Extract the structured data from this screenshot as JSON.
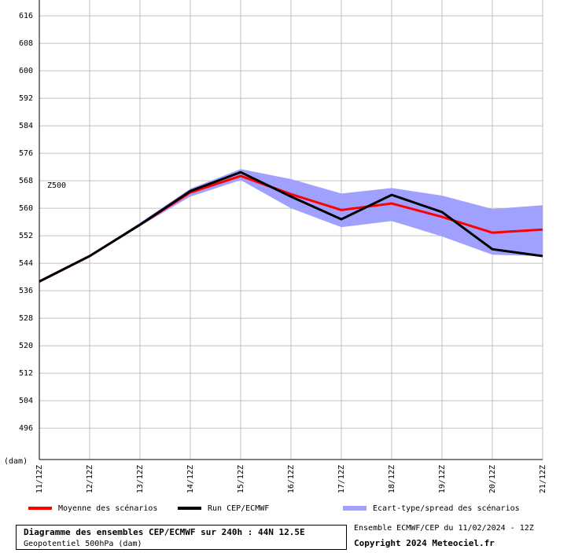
{
  "chart_data": {
    "type": "line",
    "categories": [
      "11/12Z",
      "12/12Z",
      "13/12Z",
      "14/12Z",
      "15/12Z",
      "16/12Z",
      "17/12Z",
      "18/12Z",
      "19/12Z",
      "20/12Z",
      "21/12Z"
    ],
    "series": [
      {
        "name": "Moyenne des scénarios",
        "color": "#ff0000",
        "values": [
          538.7,
          546.1,
          555.2,
          564.6,
          569.4,
          564.1,
          559.5,
          561.4,
          557.5,
          552.9,
          553.8
        ]
      },
      {
        "name": "Run CEP/ECMWF",
        "color": "#000000",
        "values": [
          538.7,
          546.1,
          555.2,
          565.0,
          570.5,
          563.4,
          556.8,
          563.9,
          558.9,
          548.1,
          546.1
        ]
      },
      {
        "name": "Ecart-type/spread des scénarios",
        "color": "#a0a0ff",
        "type": "band",
        "upper": [
          538.8,
          546.3,
          555.8,
          565.7,
          571.4,
          568.5,
          564.3,
          565.9,
          563.7,
          559.8,
          560.9
        ],
        "lower": [
          538.6,
          545.9,
          554.8,
          563.4,
          568.2,
          560.0,
          554.5,
          556.3,
          551.8,
          546.5,
          546.1
        ]
      }
    ],
    "ylim": [
      486.9,
      620.6
    ],
    "yticks": [
      496,
      504,
      512,
      520,
      528,
      536,
      544,
      552,
      560,
      568,
      576,
      584,
      592,
      600,
      608,
      616
    ],
    "ylabel": "(dam)",
    "annotation": "Z500",
    "grid": true
  },
  "footer": {
    "title": "Diagramme des ensembles CEP/ECMWF sur 240h : 44N 12.5E",
    "subtitle": "Geopotentiel 500hPa (dam)",
    "run_info": "Ensemble ECMWF/CEP du 11/02/2024 - 12Z",
    "copyright": "Copyright 2024 Meteociel.fr"
  }
}
